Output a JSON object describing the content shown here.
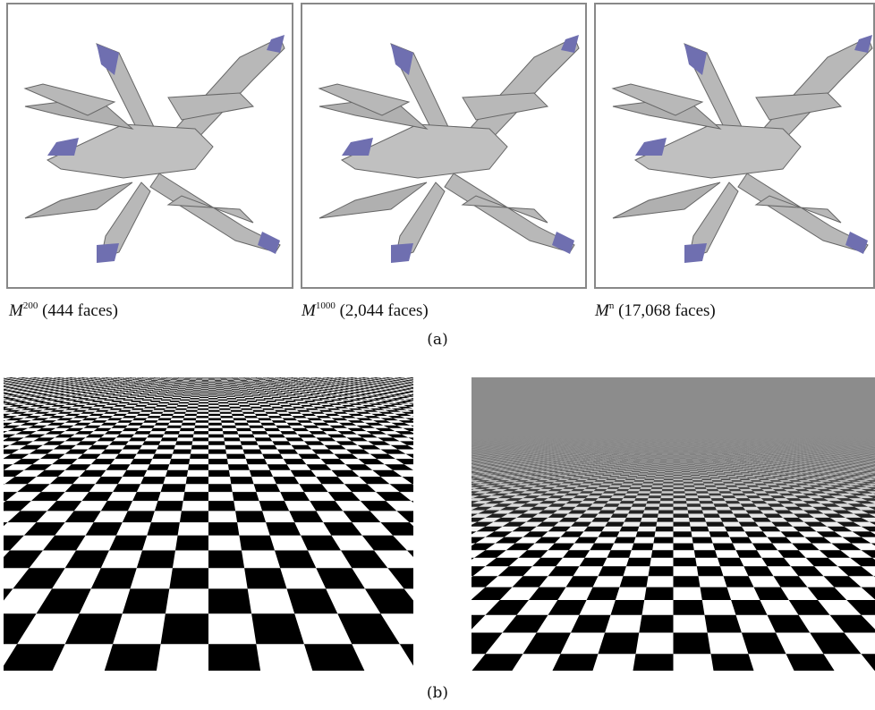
{
  "figure_a": {
    "panels": [
      {
        "symbol": "M",
        "superscript": "200",
        "caption": "(444 faces)"
      },
      {
        "symbol": "M",
        "superscript": "1000",
        "caption": "(2,044 faces)"
      },
      {
        "symbol": "M",
        "superscript": "n",
        "caption": "(17,068 faces)"
      }
    ],
    "label": "(a)"
  },
  "figure_b": {
    "label": "(b)"
  }
}
